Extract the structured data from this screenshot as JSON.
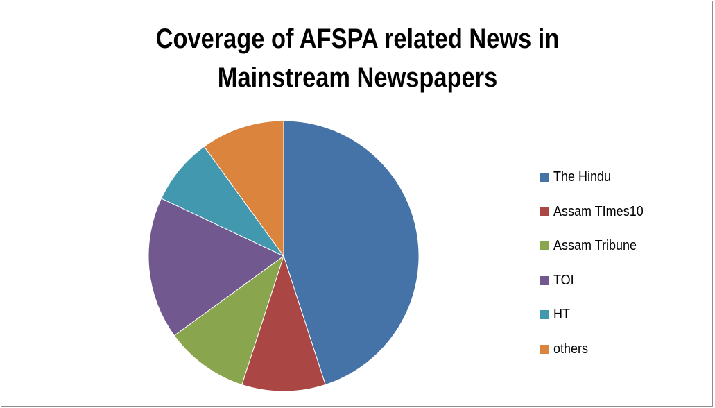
{
  "chart_data": {
    "type": "pie",
    "title": "Coverage of AFSPA related News in Mainstream Newspapers",
    "title_lines": [
      "Coverage of AFSPA related News in",
      "Mainstream Newspapers"
    ],
    "legend_position": "right",
    "categories": [
      "The Hindu",
      "Assam TImes10",
      "Assam Tribune",
      "TOI",
      "HT",
      "others"
    ],
    "values": [
      45,
      10,
      10,
      17,
      8,
      10
    ],
    "colors": [
      "#4572a7",
      "#aa4643",
      "#89a54e",
      "#71588f",
      "#4198af",
      "#db843d"
    ]
  }
}
